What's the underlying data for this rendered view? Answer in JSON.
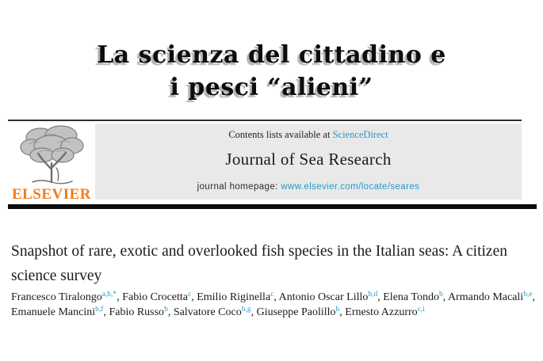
{
  "banner": {
    "line1": "La scienza del cittadino e",
    "line2": "i pesci “alieni”"
  },
  "journal_header": {
    "publisher_wordmark": "ELSEVIER",
    "contents_text": "Contents lists available at ",
    "sciencedirect_link": "ScienceDirect",
    "journal_name": "Journal of Sea Research",
    "homepage_label": "journal homepage: ",
    "homepage_url": "www.elsevier.com/locate/seares",
    "tree_icon": "elsevier-tree-icon"
  },
  "article": {
    "title": "Snapshot of rare, exotic and overlooked fish species in the Italian seas: A citizen science survey",
    "authors": [
      {
        "name": "Francesco Tiralongo",
        "sup": "a,b,*"
      },
      {
        "name": "Fabio Crocetta",
        "sup": "c"
      },
      {
        "name": "Emilio Riginella",
        "sup": "c"
      },
      {
        "name": "Antonio Oscar Lillo",
        "sup": "b,d"
      },
      {
        "name": "Elena Tondo",
        "sup": "b"
      },
      {
        "name": "Armando Macali",
        "sup": "b,e"
      },
      {
        "name": "Emanuele Mancini",
        "sup": "b,f"
      },
      {
        "name": "Fabio Russo",
        "sup": "b"
      },
      {
        "name": "Salvatore Coco",
        "sup": "b,g"
      },
      {
        "name": "Giuseppe Paolillo",
        "sup": "h"
      },
      {
        "name": "Ernesto Azzurro",
        "sup": "c,i"
      }
    ]
  },
  "colors": {
    "link_teal": "#2499c6",
    "elsevier_orange": "#f07c1a",
    "panel_gray": "#e9e9e9",
    "banner_shadow": "#b4b4b4",
    "rule_black": "#0c0c0c"
  }
}
